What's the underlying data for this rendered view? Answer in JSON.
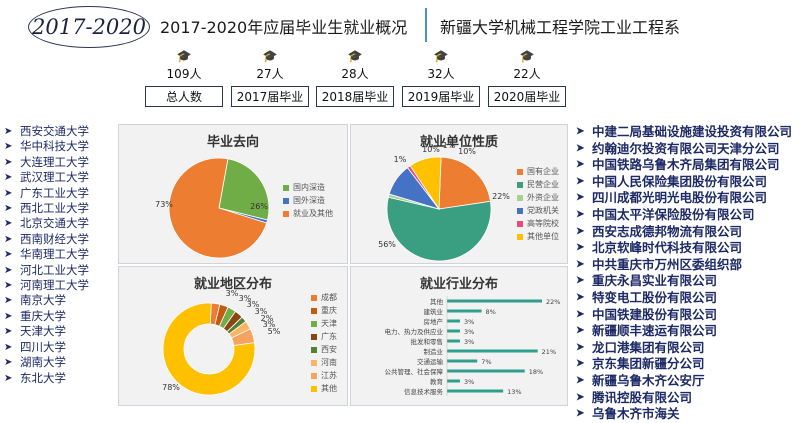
{
  "header": {
    "years": "2017-2020",
    "title": "2017-2020年应届毕业生就业概况",
    "department": "新疆大学机械工程学院工业工程系"
  },
  "stats": [
    {
      "value": "109人",
      "label": "总人数"
    },
    {
      "value": "27人",
      "label": "2017届毕业"
    },
    {
      "value": "28人",
      "label": "2018届毕业"
    },
    {
      "value": "32人",
      "label": "2019届毕业"
    },
    {
      "value": "22人",
      "label": "2020届毕业"
    }
  ],
  "universities": [
    "西安交通大学",
    "华中科技大学",
    "大连理工大学",
    "武汉理工大学",
    "广东工业大学",
    "西北工业大学",
    "北京交通大学",
    "西南财经大学",
    "华南理工大学",
    "河北工业大学",
    "河南理工大学",
    "南京大学",
    "重庆大学",
    "天津大学",
    "四川大学",
    "湖南大学",
    "东北大学"
  ],
  "companies": [
    "中建二局基础设施建设投资有限公司",
    "约翰迪尔投资有限公司天津分公司",
    "中国铁路乌鲁木齐局集团有限公司",
    "中国人民保险集团股份有限公司",
    "四川成都光明光电股份有限公司",
    "中国太平洋保险股份有限公司",
    "西安志成德邦物流有限公司",
    "北京软峰时代科技有限公司",
    "中共重庆市万州区委组织部",
    "重庆永昌实业有限公司",
    "特变电工股份有限公司",
    "中国铁建股份有限公司",
    "新疆顺丰速运有限公司",
    "龙口港集团有限公司",
    "京东集团新疆分公司",
    "新疆乌鲁木齐公安厅",
    "腾讯控股有限公司",
    "乌鲁木齐市海关"
  ],
  "colors": {
    "orange": "#ed7d31",
    "green": "#70ad47",
    "blue": "#4472c4",
    "yellow": "#ffc000",
    "teal": "#2e9e8e",
    "grey": "#a5a5a5"
  },
  "chart_data": [
    {
      "type": "pie",
      "title": "毕业去向",
      "labels": [
        "国内深造",
        "国外深造",
        "就业及其他"
      ],
      "values": [
        26,
        1,
        73
      ],
      "data_labels": [
        "26%",
        "1%",
        "73%"
      ],
      "colors": [
        "#70ad47",
        "#4472c4",
        "#ed7d31"
      ],
      "legend": "right"
    },
    {
      "type": "pie",
      "title": "就业单位性质",
      "labels": [
        "国有企业",
        "民营企业",
        "外资企业",
        "党政机关",
        "高等院校",
        "其他单位"
      ],
      "values": [
        22,
        56,
        1,
        10,
        1,
        10
      ],
      "data_labels": [
        "22%",
        "56%",
        "1%",
        "10%",
        "1%",
        "10%"
      ],
      "colors": [
        "#ed7d31",
        "#3a9e80",
        "#a9d18e",
        "#4472c4",
        "#e84a7f",
        "#ffc000"
      ],
      "legend": "right"
    },
    {
      "type": "pie",
      "title": "就业地区分布",
      "labels": [
        "成都",
        "重庆",
        "天津",
        "广东",
        "西安",
        "河南",
        "江苏",
        "其他"
      ],
      "values": [
        3,
        3,
        3,
        3,
        2,
        3,
        5,
        78
      ],
      "data_labels": [
        "3%",
        "3%",
        "3%",
        "3%",
        "2%",
        "3%",
        "5%",
        "78%"
      ],
      "colors": [
        "#ed7d31",
        "#c55a11",
        "#70ad47",
        "#8b4513",
        "#548235",
        "#ffb366",
        "#f4a460",
        "#ffc000"
      ],
      "legend": "right"
    },
    {
      "type": "bar",
      "orientation": "horizontal",
      "title": "就业行业分布",
      "categories": [
        "其他",
        "建筑业",
        "房地产",
        "电力、热力及供应业",
        "批发和零售",
        "制造业",
        "交通运输",
        "公共管理、社会保障",
        "教育",
        "信息技术服务"
      ],
      "values": [
        22,
        8,
        3,
        3,
        3,
        21,
        7,
        18,
        3,
        13
      ],
      "data_labels": [
        "22%",
        "8%",
        "3%",
        "3%",
        "3%",
        "21%",
        "7%",
        "18%",
        "3%",
        "13%"
      ],
      "color": "#2e9e8e"
    }
  ]
}
